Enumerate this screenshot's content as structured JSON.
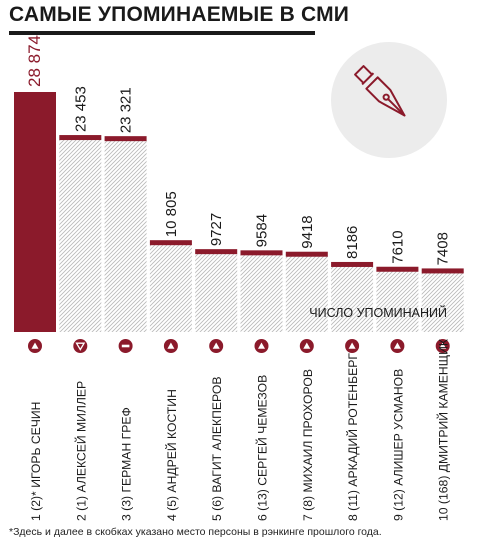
{
  "title": "САМЫЕ УПОМИНАЕМЫЕ В СМИ",
  "footnote": "*Здесь и далее в скобках указано место персоны в рэнкинге прошлого года.",
  "colors": {
    "accent": "#8b1a2b",
    "text": "#1a1a1a",
    "hatch": "#bdbdbd"
  },
  "chart_data": {
    "type": "bar",
    "ylabel": "ЧИСЛО УПОМИНАНИЙ",
    "ylim": [
      0,
      28874
    ],
    "categories": [
      "1 (2)* ИГОРЬ СЕЧИН",
      "2 (1) АЛЕКСЕЙ МИЛЛЕР",
      "3 (3) ГЕРМАН ГРЕФ",
      "4 (5) АНДРЕЙ КОСТИН",
      "5 (6) ВАГИТ АЛЕКПЕРОВ",
      "6 (13) СЕРГЕЙ ЧЕМЕЗОВ",
      "7 (8) МИХАИЛ ПРОХОРОВ",
      "8 (11) АРКАДИЙ РОТЕНБЕРГ",
      "9 (12) АЛИШЕР УСМАНОВ",
      "10 (168) ДМИТРИЙ КАМЕНЩИК"
    ],
    "values": [
      28874,
      23453,
      23321,
      10805,
      9727,
      9584,
      9418,
      8186,
      7610,
      7408
    ],
    "value_labels": [
      "28 874",
      "23 453",
      "23 321",
      "10 805",
      "9727",
      "9584",
      "9418",
      "8186",
      "7610",
      "7408"
    ],
    "trends": [
      "up",
      "down",
      "same",
      "up",
      "up",
      "up",
      "up",
      "up",
      "up",
      "up"
    ]
  }
}
